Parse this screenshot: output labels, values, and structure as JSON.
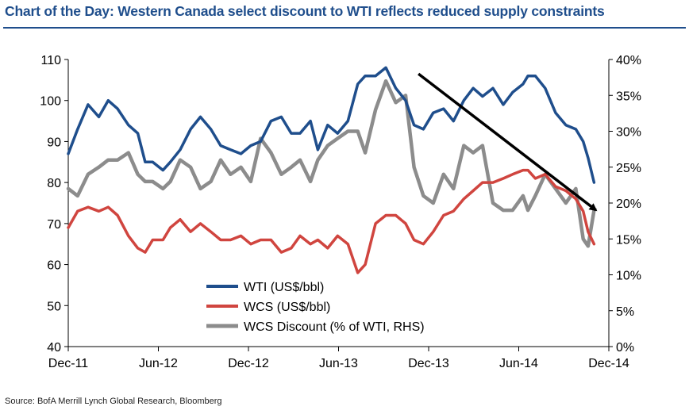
{
  "header": {
    "title": "Chart of the Day: Western Canada select discount to WTI reflects reduced supply constraints"
  },
  "footer": {
    "source": "Source: BofA Merrill Lynch Global Research, Bloomberg"
  },
  "colors": {
    "title": "#1f4e8c",
    "wti": "#1f4e8c",
    "wcs": "#d0453f",
    "discount": "#8c8c8c",
    "arrow": "#000000"
  },
  "chart_data": {
    "type": "line",
    "title": "",
    "x_ticks": [
      "Dec-11",
      "Jun-12",
      "Dec-12",
      "Jun-13",
      "Dec-13",
      "Jun-14",
      "Dec-14"
    ],
    "xlim": [
      "2011-12-01",
      "2014-12-01"
    ],
    "y_left": {
      "ylim": [
        40,
        110
      ],
      "ticks": [
        "40",
        "50",
        "60",
        "70",
        "80",
        "90",
        "100",
        "110"
      ]
    },
    "y_right": {
      "ylim": [
        0,
        40
      ],
      "ticks": [
        "0%",
        "5%",
        "10%",
        "15%",
        "20%",
        "25%",
        "30%",
        "35%",
        "40%"
      ]
    },
    "legend": {
      "placement": "bottom-center",
      "entries": [
        "WTI (US$/bbl)",
        "WCS (US$/bbl)",
        "WCS Discount (% of WTI, RHS)"
      ]
    },
    "series": [
      {
        "name": "WTI (US$/bbl)",
        "axis": "left",
        "x": [
          "2011-12-01",
          "2011-12-20",
          "2012-01-10",
          "2012-02-01",
          "2012-02-20",
          "2012-03-10",
          "2012-04-01",
          "2012-04-20",
          "2012-05-05",
          "2012-05-20",
          "2012-06-10",
          "2012-06-25",
          "2012-07-15",
          "2012-08-05",
          "2012-08-25",
          "2012-09-15",
          "2012-10-05",
          "2012-10-25",
          "2012-11-15",
          "2012-12-05",
          "2012-12-25",
          "2013-01-15",
          "2013-02-05",
          "2013-02-25",
          "2013-03-15",
          "2013-04-05",
          "2013-04-20",
          "2013-05-10",
          "2013-05-30",
          "2013-06-20",
          "2013-07-10",
          "2013-07-25",
          "2013-08-15",
          "2013-09-05",
          "2013-09-25",
          "2013-10-15",
          "2013-11-01",
          "2013-11-20",
          "2013-12-10",
          "2013-12-31",
          "2014-01-20",
          "2014-02-10",
          "2014-03-01",
          "2014-03-20",
          "2014-04-10",
          "2014-05-01",
          "2014-05-20",
          "2014-06-10",
          "2014-06-20",
          "2014-07-05",
          "2014-07-25",
          "2014-08-15",
          "2014-09-05",
          "2014-09-25",
          "2014-10-10",
          "2014-10-20",
          "2014-11-01"
        ],
        "values": [
          87,
          93,
          99,
          96,
          100,
          98,
          94,
          92,
          85,
          85,
          83,
          85,
          88,
          93,
          96,
          93,
          89,
          88,
          87,
          89,
          90,
          95,
          96,
          92,
          92,
          95,
          88,
          94,
          92,
          95,
          104,
          106,
          106,
          108,
          103,
          100,
          94,
          93,
          97,
          98,
          95,
          100,
          103,
          101,
          103,
          99,
          102,
          104,
          106,
          106,
          103,
          97,
          94,
          93,
          90,
          86,
          80
        ]
      },
      {
        "name": "WCS (US$/bbl)",
        "axis": "left",
        "x": [
          "2011-12-01",
          "2011-12-20",
          "2012-01-10",
          "2012-02-01",
          "2012-02-20",
          "2012-03-10",
          "2012-04-01",
          "2012-04-20",
          "2012-05-05",
          "2012-05-20",
          "2012-06-10",
          "2012-06-25",
          "2012-07-15",
          "2012-08-05",
          "2012-08-25",
          "2012-09-15",
          "2012-10-05",
          "2012-10-25",
          "2012-11-15",
          "2012-12-05",
          "2012-12-25",
          "2013-01-15",
          "2013-02-05",
          "2013-02-25",
          "2013-03-15",
          "2013-04-05",
          "2013-04-20",
          "2013-05-10",
          "2013-05-30",
          "2013-06-20",
          "2013-07-10",
          "2013-07-25",
          "2013-08-15",
          "2013-09-05",
          "2013-09-25",
          "2013-10-15",
          "2013-11-01",
          "2013-11-20",
          "2013-12-10",
          "2013-12-31",
          "2014-01-20",
          "2014-02-10",
          "2014-03-01",
          "2014-03-20",
          "2014-04-10",
          "2014-05-01",
          "2014-05-20",
          "2014-06-10",
          "2014-06-20",
          "2014-07-05",
          "2014-07-25",
          "2014-08-15",
          "2014-09-05",
          "2014-09-25",
          "2014-10-10",
          "2014-10-20",
          "2014-11-01"
        ],
        "values": [
          69,
          73,
          74,
          73,
          74,
          72,
          67,
          64,
          63,
          66,
          66,
          69,
          71,
          68,
          70,
          68,
          66,
          66,
          67,
          65,
          66,
          66,
          63,
          64,
          67,
          65,
          66,
          64,
          67,
          65,
          58,
          60,
          70,
          72,
          72,
          70,
          66,
          65,
          68,
          72,
          73,
          76,
          78,
          80,
          80,
          81,
          82,
          83,
          83,
          81,
          82,
          79,
          78,
          76,
          73,
          68,
          65
        ]
      },
      {
        "name": "WCS Discount (% of WTI, RHS)",
        "axis": "right",
        "x": [
          "2011-12-01",
          "2011-12-20",
          "2012-01-10",
          "2012-02-01",
          "2012-02-20",
          "2012-03-10",
          "2012-04-01",
          "2012-04-20",
          "2012-05-05",
          "2012-05-20",
          "2012-06-10",
          "2012-06-25",
          "2012-07-15",
          "2012-08-05",
          "2012-08-25",
          "2012-09-15",
          "2012-10-05",
          "2012-10-25",
          "2012-11-15",
          "2012-12-05",
          "2012-12-25",
          "2013-01-15",
          "2013-02-05",
          "2013-02-25",
          "2013-03-15",
          "2013-04-05",
          "2013-04-20",
          "2013-05-10",
          "2013-05-30",
          "2013-06-20",
          "2013-07-10",
          "2013-07-25",
          "2013-08-15",
          "2013-09-05",
          "2013-09-25",
          "2013-10-15",
          "2013-11-01",
          "2013-11-20",
          "2013-12-10",
          "2013-12-31",
          "2014-01-20",
          "2014-02-10",
          "2014-03-01",
          "2014-03-20",
          "2014-04-10",
          "2014-05-01",
          "2014-05-20",
          "2014-06-10",
          "2014-06-20",
          "2014-07-05",
          "2014-07-25",
          "2014-08-15",
          "2014-09-05",
          "2014-09-25",
          "2014-10-10",
          "2014-10-20",
          "2014-11-01"
        ],
        "values": [
          22,
          21,
          24,
          25,
          26,
          26,
          27,
          24,
          23,
          23,
          22,
          23,
          26,
          25,
          22,
          23,
          26,
          24,
          25,
          23,
          29,
          27,
          24,
          25,
          26,
          23,
          26,
          28,
          29,
          30,
          30,
          27,
          33,
          37,
          34,
          35,
          25,
          21,
          20,
          24,
          22,
          28,
          27,
          28,
          20,
          19,
          19,
          21,
          19,
          21,
          24,
          22,
          20,
          22,
          15,
          14,
          19
        ]
      }
    ],
    "annotations": [
      {
        "type": "arrow",
        "from": [
          "2013-11-10",
          38
        ],
        "to": [
          "2014-11-05",
          19
        ]
      }
    ]
  }
}
